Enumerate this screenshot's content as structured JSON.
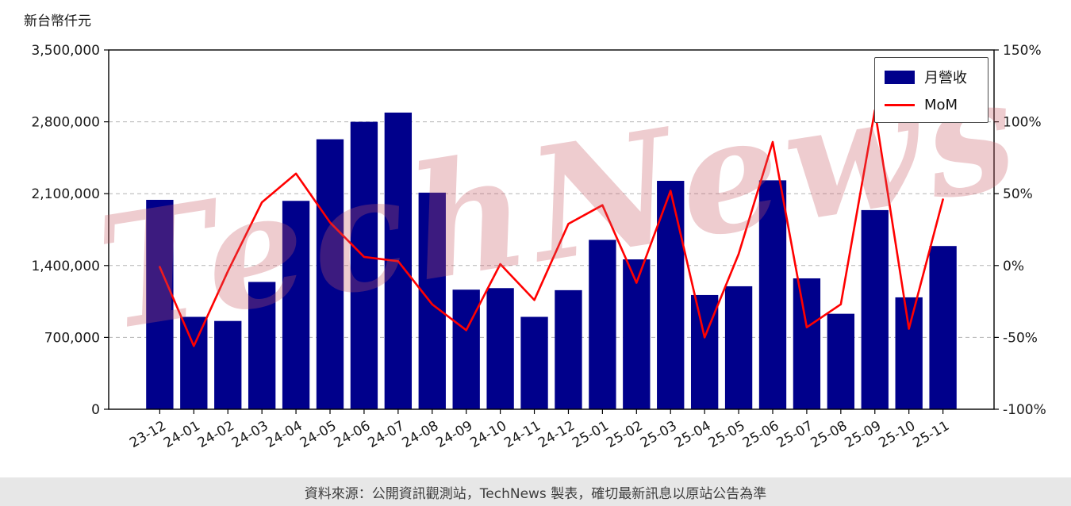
{
  "page": {
    "unit_label": "新台幣仟元",
    "watermark": "TechNews",
    "footer_text": "資料來源：公開資訊觀測站，TechNews 製表，確切最新訊息以原站公告為準"
  },
  "legend": {
    "bar_label": "月營收",
    "line_label": "MoM"
  },
  "colors": {
    "bar": "#00008B",
    "line": "#FF0000",
    "grid": "#b3b3b3",
    "frame": "#000000",
    "watermark": "#c85a64"
  },
  "chart_data": {
    "type": "bar",
    "title": "",
    "xlabel": "",
    "ylabel": "新台幣仟元",
    "grid": "dashed-horizontal",
    "legend_position": "top-right",
    "categories": [
      "23-12",
      "24-01",
      "24-02",
      "24-03",
      "24-04",
      "24-05",
      "24-06",
      "24-07",
      "24-08",
      "24-09",
      "24-10",
      "24-11",
      "24-12",
      "25-01",
      "25-02",
      "25-03",
      "25-04",
      "25-05",
      "25-06",
      "25-07",
      "25-08",
      "25-09",
      "25-10",
      "25-11"
    ],
    "series": [
      {
        "name": "月營收",
        "type": "bar",
        "axis": "left",
        "unit": "新台幣仟元",
        "values": [
          2040000,
          900000,
          860000,
          1240000,
          2030000,
          2630000,
          2800000,
          2890000,
          2110000,
          1165000,
          1180000,
          900000,
          1160000,
          1650000,
          1460000,
          2225000,
          1113000,
          1198000,
          2230000,
          1275000,
          930000,
          1940000,
          1090000,
          1590000
        ]
      },
      {
        "name": "MoM",
        "type": "line",
        "axis": "right",
        "unit": "%",
        "values": [
          -1,
          -56,
          -4,
          44,
          64,
          30,
          6,
          3,
          -27,
          -45,
          1,
          -24,
          29,
          42,
          -12,
          52,
          -50,
          8,
          86,
          -43,
          -27,
          108,
          -44,
          46
        ]
      }
    ],
    "left_axis": {
      "min": 0,
      "max": 3500000,
      "ticks": [
        {
          "value": 0,
          "label": "0"
        },
        {
          "value": 700000,
          "label": "700,000"
        },
        {
          "value": 1400000,
          "label": "1,400,000"
        },
        {
          "value": 2100000,
          "label": "2,100,000"
        },
        {
          "value": 2800000,
          "label": "2,800,000"
        },
        {
          "value": 3500000,
          "label": "3,500,000"
        }
      ]
    },
    "right_axis": {
      "min": -100,
      "max": 150,
      "ticks": [
        {
          "value": -100,
          "label": "-100%"
        },
        {
          "value": -50,
          "label": "-50%"
        },
        {
          "value": 0,
          "label": "0%"
        },
        {
          "value": 50,
          "label": "50%"
        },
        {
          "value": 100,
          "label": "100%"
        },
        {
          "value": 150,
          "label": "150%"
        }
      ]
    }
  }
}
